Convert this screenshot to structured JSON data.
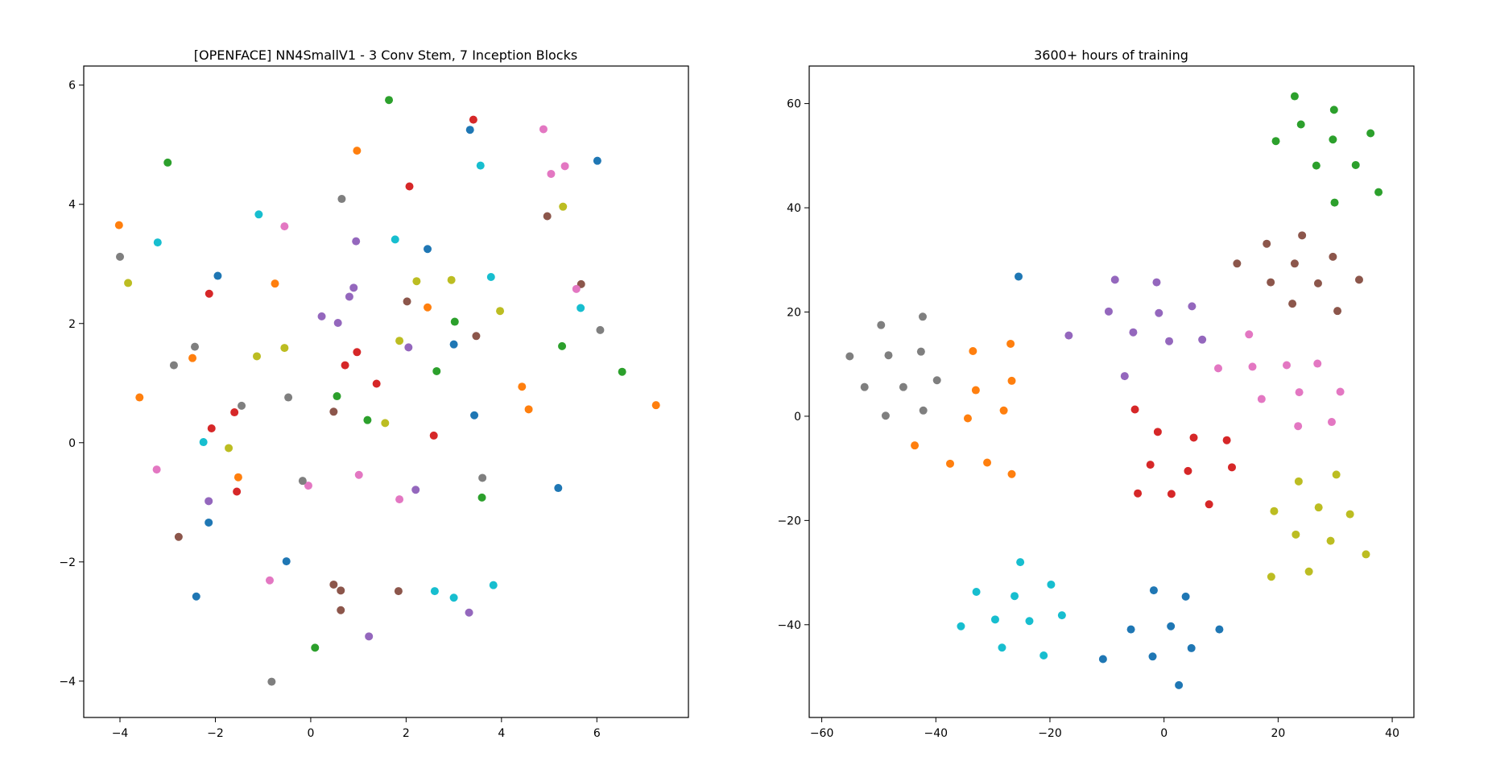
{
  "chart_data": [
    {
      "type": "scatter",
      "title": "[OPENFACE] NN4SmallV1 - 3 Conv Stem, 7 Inception Blocks",
      "xlabel": "",
      "ylabel": "",
      "xlim": [
        -4.76,
        7.92
      ],
      "ylim": [
        -4.61,
        6.32
      ],
      "xticks": [
        -4,
        -2,
        0,
        2,
        4,
        6
      ],
      "yticks": [
        -4,
        -2,
        0,
        2,
        4,
        6
      ],
      "grid": false,
      "legend": "none",
      "series": [
        {
          "color": "#1f77b4",
          "points": [
            [
              3.34,
              5.25
            ],
            [
              6.01,
              4.73
            ],
            [
              2.45,
              3.25
            ],
            [
              -1.95,
              2.8
            ],
            [
              3.0,
              1.65
            ],
            [
              3.43,
              0.46
            ],
            [
              5.19,
              -0.76
            ],
            [
              -2.14,
              -1.34
            ],
            [
              -0.51,
              -1.99
            ],
            [
              -2.4,
              -2.58
            ]
          ]
        },
        {
          "color": "#ff7f0e",
          "points": [
            [
              0.97,
              4.9
            ],
            [
              -4.02,
              3.65
            ],
            [
              -0.75,
              2.67
            ],
            [
              2.45,
              2.27
            ],
            [
              -2.48,
              1.42
            ],
            [
              -3.59,
              0.76
            ],
            [
              4.43,
              0.94
            ],
            [
              4.57,
              0.56
            ],
            [
              7.24,
              0.63
            ],
            [
              -1.52,
              -0.58
            ]
          ]
        },
        {
          "color": "#2ca02c",
          "points": [
            [
              1.64,
              5.75
            ],
            [
              -3.0,
              4.7
            ],
            [
              3.02,
              2.03
            ],
            [
              5.27,
              1.62
            ],
            [
              6.53,
              1.19
            ],
            [
              2.64,
              1.2
            ],
            [
              0.55,
              0.78
            ],
            [
              1.19,
              0.38
            ],
            [
              3.59,
              -0.92
            ],
            [
              0.09,
              -3.44
            ]
          ]
        },
        {
          "color": "#d62728",
          "points": [
            [
              3.41,
              5.42
            ],
            [
              2.07,
              4.3
            ],
            [
              -2.13,
              2.5
            ],
            [
              0.97,
              1.52
            ],
            [
              0.72,
              1.3
            ],
            [
              1.38,
              0.99
            ],
            [
              -2.08,
              0.24
            ],
            [
              -1.6,
              0.51
            ],
            [
              2.58,
              0.12
            ],
            [
              -1.55,
              -0.82
            ]
          ]
        },
        {
          "color": "#9467bd",
          "points": [
            [
              0.95,
              3.38
            ],
            [
              0.9,
              2.6
            ],
            [
              0.81,
              2.45
            ],
            [
              0.23,
              2.12
            ],
            [
              0.57,
              2.01
            ],
            [
              2.05,
              1.6
            ],
            [
              2.2,
              -0.79
            ],
            [
              -2.14,
              -0.98
            ],
            [
              3.32,
              -2.85
            ],
            [
              1.22,
              -3.25
            ]
          ]
        },
        {
          "color": "#8c564b",
          "points": [
            [
              4.96,
              3.8
            ],
            [
              5.67,
              2.66
            ],
            [
              2.02,
              2.37
            ],
            [
              3.47,
              1.79
            ],
            [
              0.48,
              0.52
            ],
            [
              -2.77,
              -1.58
            ],
            [
              0.48,
              -2.38
            ],
            [
              0.63,
              -2.48
            ],
            [
              1.84,
              -2.49
            ],
            [
              0.63,
              -2.81
            ]
          ]
        },
        {
          "color": "#e377c2",
          "points": [
            [
              4.88,
              5.26
            ],
            [
              5.04,
              4.51
            ],
            [
              5.33,
              4.64
            ],
            [
              -0.55,
              3.63
            ],
            [
              5.57,
              2.58
            ],
            [
              -3.23,
              -0.45
            ],
            [
              1.01,
              -0.54
            ],
            [
              -0.05,
              -0.72
            ],
            [
              1.86,
              -0.95
            ],
            [
              -0.86,
              -2.31
            ]
          ]
        },
        {
          "color": "#7f7f7f",
          "points": [
            [
              0.65,
              4.09
            ],
            [
              -4.0,
              3.12
            ],
            [
              -2.43,
              1.61
            ],
            [
              6.07,
              1.89
            ],
            [
              -2.87,
              1.3
            ],
            [
              -0.47,
              0.76
            ],
            [
              -1.45,
              0.62
            ],
            [
              3.6,
              -0.59
            ],
            [
              -0.17,
              -0.64
            ],
            [
              -0.82,
              -4.01
            ]
          ]
        },
        {
          "color": "#bcbd22",
          "points": [
            [
              5.29,
              3.96
            ],
            [
              -3.83,
              2.68
            ],
            [
              2.22,
              2.71
            ],
            [
              2.95,
              2.73
            ],
            [
              3.97,
              2.21
            ],
            [
              1.86,
              1.71
            ],
            [
              -0.55,
              1.59
            ],
            [
              -1.13,
              1.45
            ],
            [
              1.56,
              0.33
            ],
            [
              -1.72,
              -0.09
            ]
          ]
        },
        {
          "color": "#17becf",
          "points": [
            [
              3.56,
              4.65
            ],
            [
              -3.21,
              3.36
            ],
            [
              -1.09,
              3.83
            ],
            [
              1.77,
              3.41
            ],
            [
              3.78,
              2.78
            ],
            [
              5.66,
              2.26
            ],
            [
              -2.25,
              0.01
            ],
            [
              2.6,
              -2.49
            ],
            [
              3.0,
              -2.6
            ],
            [
              3.83,
              -2.39
            ]
          ]
        }
      ]
    },
    {
      "type": "scatter",
      "title": "3600+ hours of training",
      "xlabel": "",
      "ylabel": "",
      "xlim": [
        -62.2,
        43.8
      ],
      "ylim": [
        -57.8,
        67.2
      ],
      "xticks": [
        -60,
        -40,
        -20,
        0,
        20,
        40
      ],
      "yticks": [
        -40,
        -20,
        0,
        20,
        40,
        60
      ],
      "grid": false,
      "legend": "none",
      "series": [
        {
          "color": "#1f77b4",
          "points": [
            [
              -25.5,
              26.8
            ],
            [
              -1.8,
              -33.4
            ],
            [
              3.8,
              -34.6
            ],
            [
              -5.8,
              -40.9
            ],
            [
              1.2,
              -40.3
            ],
            [
              9.7,
              -40.9
            ],
            [
              4.8,
              -44.5
            ],
            [
              -10.7,
              -46.6
            ],
            [
              -2.0,
              -46.1
            ],
            [
              2.6,
              -51.6
            ]
          ]
        },
        {
          "color": "#ff7f0e",
          "points": [
            [
              -33.5,
              12.5
            ],
            [
              -26.9,
              13.9
            ],
            [
              -33.0,
              5.0
            ],
            [
              -26.7,
              6.8
            ],
            [
              -34.4,
              -0.4
            ],
            [
              -28.1,
              1.1
            ],
            [
              -43.7,
              -5.6
            ],
            [
              -37.5,
              -9.1
            ],
            [
              -31.0,
              -8.9
            ],
            [
              -26.7,
              -11.1
            ]
          ]
        },
        {
          "color": "#2ca02c",
          "points": [
            [
              22.9,
              61.4
            ],
            [
              29.8,
              58.8
            ],
            [
              24.0,
              56.0
            ],
            [
              36.2,
              54.3
            ],
            [
              19.6,
              52.8
            ],
            [
              29.6,
              53.1
            ],
            [
              26.7,
              48.1
            ],
            [
              33.6,
              48.2
            ],
            [
              37.6,
              43.0
            ],
            [
              29.9,
              41.0
            ]
          ]
        },
        {
          "color": "#d62728",
          "points": [
            [
              -5.1,
              1.3
            ],
            [
              -1.1,
              -3.0
            ],
            [
              5.2,
              -4.1
            ],
            [
              11.0,
              -4.6
            ],
            [
              -2.4,
              -9.3
            ],
            [
              4.2,
              -10.5
            ],
            [
              11.9,
              -9.8
            ],
            [
              -4.6,
              -14.8
            ],
            [
              1.3,
              -14.9
            ],
            [
              7.9,
              -16.9
            ]
          ]
        },
        {
          "color": "#9467bd",
          "points": [
            [
              -8.6,
              26.2
            ],
            [
              -1.3,
              25.7
            ],
            [
              -9.7,
              20.1
            ],
            [
              -0.9,
              19.8
            ],
            [
              4.9,
              21.1
            ],
            [
              -16.7,
              15.5
            ],
            [
              -5.4,
              16.1
            ],
            [
              0.9,
              14.4
            ],
            [
              6.7,
              14.7
            ],
            [
              -6.9,
              7.7
            ]
          ]
        },
        {
          "color": "#8c564b",
          "points": [
            [
              24.2,
              34.7
            ],
            [
              18.0,
              33.1
            ],
            [
              12.8,
              29.3
            ],
            [
              22.9,
              29.3
            ],
            [
              29.6,
              30.6
            ],
            [
              18.7,
              25.7
            ],
            [
              27.0,
              25.5
            ],
            [
              34.2,
              26.2
            ],
            [
              22.5,
              21.6
            ],
            [
              30.4,
              20.2
            ]
          ]
        },
        {
          "color": "#e377c2",
          "points": [
            [
              14.9,
              15.7
            ],
            [
              15.5,
              9.5
            ],
            [
              9.5,
              9.2
            ],
            [
              21.5,
              9.8
            ],
            [
              26.9,
              10.1
            ],
            [
              17.1,
              3.3
            ],
            [
              23.7,
              4.6
            ],
            [
              30.9,
              4.7
            ],
            [
              23.5,
              -1.9
            ],
            [
              29.4,
              -1.1
            ]
          ]
        },
        {
          "color": "#7f7f7f",
          "points": [
            [
              -42.3,
              19.1
            ],
            [
              -49.6,
              17.5
            ],
            [
              -55.1,
              11.5
            ],
            [
              -48.3,
              11.7
            ],
            [
              -42.6,
              12.4
            ],
            [
              -39.8,
              6.9
            ],
            [
              -52.5,
              5.6
            ],
            [
              -45.7,
              5.6
            ],
            [
              -48.8,
              0.1
            ],
            [
              -42.2,
              1.1
            ]
          ]
        },
        {
          "color": "#bcbd22",
          "points": [
            [
              23.6,
              -12.5
            ],
            [
              30.2,
              -11.2
            ],
            [
              19.3,
              -18.2
            ],
            [
              27.1,
              -17.5
            ],
            [
              32.6,
              -18.8
            ],
            [
              23.1,
              -22.7
            ],
            [
              29.2,
              -23.9
            ],
            [
              35.4,
              -26.5
            ],
            [
              18.8,
              -30.8
            ],
            [
              25.4,
              -29.8
            ]
          ]
        },
        {
          "color": "#17becf",
          "points": [
            [
              -25.2,
              -28.0
            ],
            [
              -19.8,
              -32.3
            ],
            [
              -32.9,
              -33.7
            ],
            [
              -26.2,
              -34.5
            ],
            [
              -17.9,
              -38.2
            ],
            [
              -29.6,
              -39.0
            ],
            [
              -23.6,
              -39.3
            ],
            [
              -35.6,
              -40.3
            ],
            [
              -28.4,
              -44.4
            ],
            [
              -21.1,
              -45.9
            ]
          ]
        }
      ]
    }
  ]
}
